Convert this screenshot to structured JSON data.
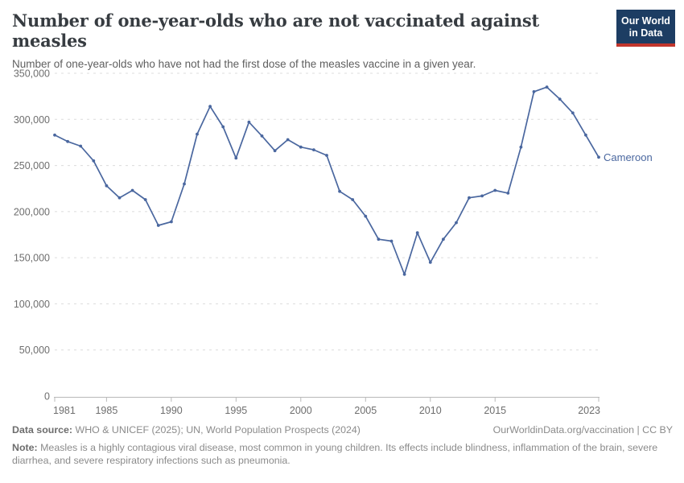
{
  "header": {
    "title": "Number of one-year-olds who are not vaccinated against measles",
    "subtitle": "Number of one-year-olds who have not had the first dose of the measles vaccine in a given year."
  },
  "logo": {
    "line1": "Our World",
    "line2": "in Data",
    "bg_color": "#1d3d63",
    "bar_color": "#c1352c"
  },
  "chart_data": {
    "type": "line",
    "title": "Number of one-year-olds who are not vaccinated against measles",
    "xlabel": "",
    "ylabel": "",
    "xlim": [
      1981,
      2023
    ],
    "ylim": [
      0,
      350000
    ],
    "grid": "horizontal-dashed",
    "legend_position": "end-of-line-label",
    "xticks": [
      1981,
      1985,
      1990,
      1995,
      2000,
      2005,
      2010,
      2015,
      2023
    ],
    "yticks": [
      {
        "value": 0,
        "label": "0"
      },
      {
        "value": 50000,
        "label": "50,000"
      },
      {
        "value": 100000,
        "label": "100,000"
      },
      {
        "value": 150000,
        "label": "150,000"
      },
      {
        "value": 200000,
        "label": "200,000"
      },
      {
        "value": 250000,
        "label": "250,000"
      },
      {
        "value": 300000,
        "label": "300,000"
      },
      {
        "value": 350000,
        "label": "350,000"
      }
    ],
    "series": [
      {
        "name": "Cameroon",
        "color": "#4a679f",
        "x": [
          1981,
          1982,
          1983,
          1984,
          1985,
          1986,
          1987,
          1988,
          1989,
          1990,
          1991,
          1992,
          1993,
          1994,
          1995,
          1996,
          1997,
          1998,
          1999,
          2000,
          2001,
          2002,
          2003,
          2004,
          2005,
          2006,
          2007,
          2008,
          2009,
          2010,
          2011,
          2012,
          2013,
          2014,
          2015,
          2016,
          2017,
          2018,
          2019,
          2020,
          2021,
          2022,
          2023
        ],
        "values": [
          283000,
          276000,
          271000,
          255000,
          228000,
          215000,
          223000,
          213000,
          185000,
          189000,
          230000,
          284000,
          314000,
          292000,
          258000,
          297000,
          282000,
          266000,
          278000,
          270000,
          267000,
          261000,
          222000,
          213000,
          195000,
          170000,
          168000,
          132000,
          177000,
          145000,
          170000,
          188000,
          215000,
          217000,
          223000,
          220000,
          270000,
          330000,
          335000,
          322000,
          307000,
          283000,
          259000
        ]
      }
    ]
  },
  "footer": {
    "datasource_label": "Data source:",
    "datasource_text": " WHO & UNICEF (2025); UN, World Population Prospects (2024)",
    "rights": "OurWorldinData.org/vaccination | CC BY",
    "note_label": "Note:",
    "note_text": " Measles is a highly contagious viral disease, most common in young children. Its effects include blindness, inflammation of the brain, severe diarrhea, and severe respiratory infections such as pneumonia."
  }
}
